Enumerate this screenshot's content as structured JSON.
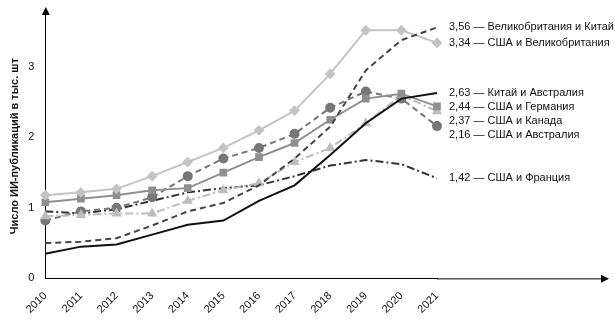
{
  "chart_data": {
    "type": "line",
    "y_label": "Число ИИ-публикаций в тыс. шт",
    "categories": [
      "2010",
      "2011",
      "2012",
      "2013",
      "2014",
      "2015",
      "2016",
      "2017",
      "2018",
      "2019",
      "2020",
      "2021"
    ],
    "ylim": [
      0,
      3.75
    ],
    "yticks": [
      0,
      1,
      2,
      3
    ],
    "grid": false,
    "series": [
      {
        "name": "3,56 — Великобритания и Китай",
        "color": "#444444",
        "line_style": "dashed",
        "marker": "none",
        "values": [
          0.5,
          0.52,
          0.57,
          0.75,
          0.95,
          1.07,
          1.32,
          1.7,
          2.15,
          2.95,
          3.38,
          3.56
        ]
      },
      {
        "name": "3,34 — США и Великобритания",
        "color": "#c4c4c4",
        "line_style": "solid",
        "marker": "diamond",
        "values": [
          1.18,
          1.22,
          1.27,
          1.45,
          1.65,
          1.85,
          2.1,
          2.38,
          2.9,
          3.52,
          3.52,
          3.34
        ]
      },
      {
        "name": "2,63 — Китай и Австралия",
        "color": "#111111",
        "line_style": "solid",
        "marker": "none",
        "values": [
          0.35,
          0.45,
          0.48,
          0.62,
          0.76,
          0.82,
          1.1,
          1.32,
          1.75,
          2.2,
          2.55,
          2.63
        ]
      },
      {
        "name": "2,44 — США и Германия",
        "color": "#8f8f8f",
        "line_style": "solid",
        "marker": "square",
        "values": [
          1.08,
          1.13,
          1.18,
          1.25,
          1.28,
          1.5,
          1.72,
          1.92,
          2.25,
          2.55,
          2.62,
          2.44
        ]
      },
      {
        "name": "2,37 — США и Канада",
        "color": "#bdbdbd",
        "line_style": "dashdot",
        "marker": "triangle",
        "values": [
          0.88,
          0.9,
          0.92,
          0.92,
          1.1,
          1.25,
          1.35,
          1.65,
          1.85,
          2.2,
          2.6,
          2.37
        ]
      },
      {
        "name": "2,16 — США и Австралия",
        "color": "#777777",
        "line_style": "dashed",
        "marker": "circle",
        "values": [
          0.82,
          0.95,
          1.0,
          1.15,
          1.45,
          1.7,
          1.85,
          2.05,
          2.42,
          2.65,
          2.55,
          2.16
        ]
      },
      {
        "name": "1,42 — США и Франция",
        "color": "#333333",
        "line_style": "dashdot",
        "marker": "none",
        "values": [
          0.95,
          0.92,
          0.98,
          1.1,
          1.22,
          1.28,
          1.32,
          1.45,
          1.6,
          1.68,
          1.62,
          1.42
        ]
      }
    ]
  }
}
